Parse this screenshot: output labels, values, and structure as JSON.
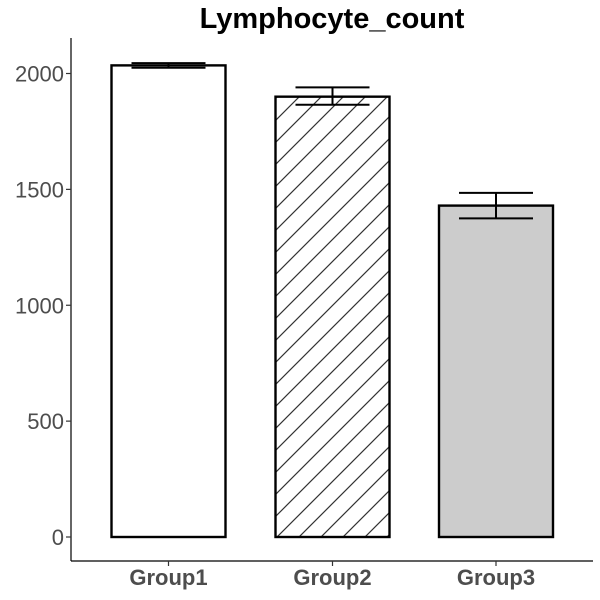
{
  "chart_data": {
    "type": "bar",
    "title": "Lymphocyte_count",
    "xlabel": "",
    "ylabel": "",
    "categories": [
      "Group1",
      "Group2",
      "Group3"
    ],
    "values": [
      2035,
      1900,
      1430
    ],
    "error_upper": [
      2045,
      1940,
      1485
    ],
    "error_lower": [
      2025,
      1865,
      1375
    ],
    "patterns": [
      "none",
      "diagonal-stripes",
      "none"
    ],
    "fills": [
      "#ffffff",
      "#ffffff",
      "#cccccc"
    ],
    "ylim": [
      0,
      2150
    ],
    "y_ticks": [
      0,
      500,
      1000,
      1500,
      2000
    ],
    "grid": false,
    "legend": "none"
  }
}
